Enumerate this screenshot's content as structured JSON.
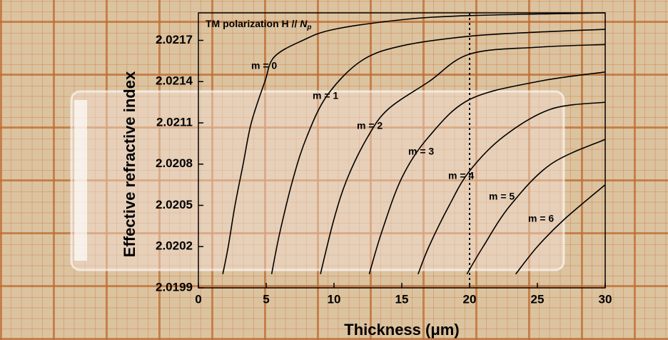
{
  "chart_data": {
    "type": "line",
    "title": {
      "text": "TM polarization H //",
      "symbol": "N",
      "subscript": "p"
    },
    "x_label": "Thickness (μm)",
    "y_label": "Effective refractive index",
    "xlim": [
      0,
      30
    ],
    "xticks": [
      0,
      5,
      10,
      15,
      20,
      25,
      30
    ],
    "ylim": [
      2.0199,
      2.0219
    ],
    "yticks": [
      2.0199,
      2.0202,
      2.0205,
      2.0208,
      2.0211,
      2.0214,
      2.0217
    ],
    "vline": 20,
    "color": "#000000",
    "series": [
      {
        "name": "m = 0",
        "x": [
          1.8,
          2.2,
          2.7,
          3.3,
          3.9,
          4.9,
          5.6,
          7.7,
          10,
          15,
          20,
          30
        ],
        "values": [
          2.02,
          2.0202,
          2.0205,
          2.0208,
          2.0211,
          2.0214,
          2.02158,
          2.0217,
          2.02178,
          2.02185,
          2.02188,
          2.0219
        ]
      },
      {
        "name": "m = 1",
        "x": [
          5.4,
          6.0,
          7.0,
          8.0,
          9.5,
          12,
          15,
          20,
          25,
          30
        ],
        "values": [
          2.02,
          2.0203,
          2.0207,
          2.021,
          2.0213,
          2.02155,
          2.02166,
          2.02173,
          2.02176,
          2.02178
        ]
      },
      {
        "name": "m = 2",
        "x": [
          9.0,
          10,
          11,
          12.5,
          14,
          17,
          20,
          25,
          30
        ],
        "values": [
          2.02,
          2.0204,
          2.0207,
          2.021,
          2.0212,
          2.0214,
          2.0216,
          2.02165,
          2.02167
        ]
      },
      {
        "name": "m = 3",
        "x": [
          12.6,
          13.5,
          15,
          17,
          20,
          25,
          30
        ],
        "values": [
          2.02,
          2.0203,
          2.0207,
          2.021,
          2.02127,
          2.0214,
          2.02147
        ]
      },
      {
        "name": "m = 4",
        "x": [
          16.2,
          17,
          18.5,
          20,
          22.5,
          26,
          30
        ],
        "values": [
          2.02,
          2.0202,
          2.0205,
          2.02075,
          2.021,
          2.0212,
          2.02125
        ]
      },
      {
        "name": "m = 5",
        "x": [
          19.8,
          21,
          23,
          26,
          30
        ],
        "values": [
          2.02,
          2.0202,
          2.0205,
          2.0208,
          2.02098
        ]
      },
      {
        "name": "m = 6",
        "x": [
          23.4,
          25,
          27,
          30
        ],
        "values": [
          2.02,
          2.0202,
          2.0204,
          2.02065
        ]
      }
    ]
  }
}
